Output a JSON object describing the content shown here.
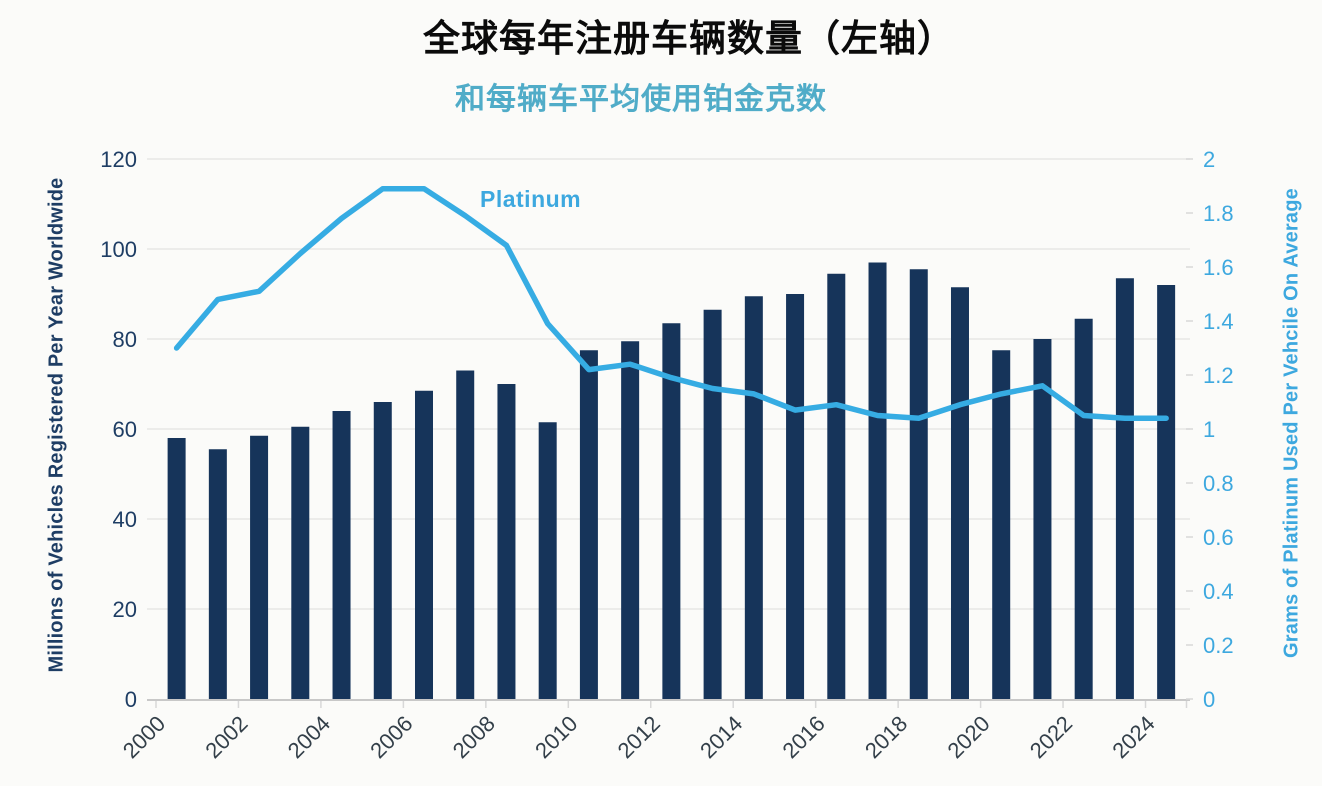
{
  "title": "全球每年注册车辆数量（左轴）",
  "subtitle": "和每辆车平均使用铂金克数",
  "chart_data": {
    "type": "bar+line",
    "categories": [
      "2000",
      "2001",
      "2002",
      "2003",
      "2004",
      "2005",
      "2006",
      "2007",
      "2008",
      "2009",
      "2010",
      "2011",
      "2012",
      "2013",
      "2014",
      "2015",
      "2016",
      "2017",
      "2018",
      "2019",
      "2020",
      "2021",
      "2022",
      "2023",
      "2024"
    ],
    "x_tick_labels": [
      "2000",
      "2002",
      "2004",
      "2006",
      "2008",
      "2010",
      "2012",
      "2014",
      "2016",
      "2018",
      "2020",
      "2022",
      "2024"
    ],
    "series": [
      {
        "name": "全球每年注册车辆数量",
        "type": "bar",
        "axis": "left",
        "values": [
          58,
          55.5,
          58.5,
          60.5,
          64,
          66,
          68.5,
          73,
          70,
          61.5,
          77.5,
          79.5,
          83.5,
          86.5,
          89.5,
          90,
          94.5,
          97,
          95.5,
          91.5,
          77.5,
          80,
          84.5,
          93.5,
          92
        ]
      },
      {
        "name": "Platinum",
        "type": "line",
        "axis": "right",
        "values": [
          1.3,
          1.48,
          1.51,
          1.65,
          1.78,
          1.89,
          1.89,
          1.79,
          1.68,
          1.39,
          1.22,
          1.24,
          1.19,
          1.15,
          1.13,
          1.07,
          1.09,
          1.05,
          1.04,
          1.09,
          1.13,
          1.16,
          1.05,
          1.04,
          1.04
        ]
      }
    ],
    "left_axis": {
      "title": "Millions of Vehicles Registered Per Year Worldwide",
      "min": 0,
      "max": 120,
      "step": 20,
      "ticks": [
        "0",
        "20",
        "40",
        "60",
        "80",
        "100",
        "120"
      ]
    },
    "right_axis": {
      "title": "Grams of Platinum Used Per Vehcile On Average",
      "min": 0,
      "max": 2,
      "step": 0.2,
      "ticks": [
        "0",
        "0.2",
        "0.4",
        "0.6",
        "0.8",
        "1",
        "1.2",
        "1.4",
        "1.6",
        "1.8",
        "2"
      ]
    },
    "annotation": "Platinum",
    "grid": true,
    "legend_position": "inline-annotation",
    "colors": {
      "bar": "#16345A",
      "line": "#36ACE3",
      "left_axis_text": "#1E3D64",
      "right_axis_text": "#3DA8DF",
      "x_label_text": "#333F49",
      "gridline": "#E8E8E6",
      "baseline": "#C8C8C8",
      "tick": "#D8D8D8",
      "title": "#0B0B0B",
      "subtitle": "#50ACC8"
    }
  }
}
